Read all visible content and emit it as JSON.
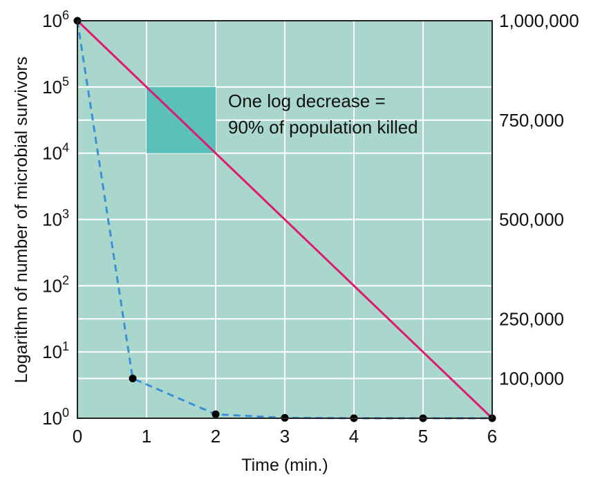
{
  "chart_data": {
    "type": "line",
    "title": "",
    "xlabel": "Time (min.)",
    "ylabel": "Logarithm of number of microbial survivors",
    "xlim": [
      0,
      6
    ],
    "ylim": [
      0,
      6
    ],
    "y_scale": "log",
    "x_ticks": [
      "0",
      "1",
      "2",
      "3",
      "4",
      "5",
      "6"
    ],
    "y_ticks": [
      {
        "base": "10",
        "exp": "0",
        "value": 0
      },
      {
        "base": "10",
        "exp": "1",
        "value": 1
      },
      {
        "base": "10",
        "exp": "2",
        "value": 2
      },
      {
        "base": "10",
        "exp": "3",
        "value": 3
      },
      {
        "base": "10",
        "exp": "4",
        "value": 4
      },
      {
        "base": "10",
        "exp": "5",
        "value": 5
      },
      {
        "base": "10",
        "exp": "6",
        "value": 6
      }
    ],
    "right_axis": {
      "scale": "linear",
      "ticks": [
        {
          "label": "1,000,000",
          "value": 1000000
        },
        {
          "label": "750,000",
          "value": 750000
        },
        {
          "label": "500,000",
          "value": 500000
        },
        {
          "label": "250,000",
          "value": 250000
        },
        {
          "label": "100,000",
          "value": 100000
        }
      ]
    },
    "series": [
      {
        "axis": "left-log",
        "style": "solid",
        "color": "#e0186f",
        "x": [
          0,
          6
        ],
        "y": [
          1000000,
          1
        ]
      },
      {
        "axis": "right-linear",
        "style": "dashed",
        "color": "#3b8fd9",
        "x": [
          0,
          0.8,
          2,
          3,
          4,
          5,
          6
        ],
        "y": [
          1000000,
          100000,
          10000,
          1000,
          100,
          10,
          1
        ]
      }
    ],
    "highlight": {
      "x": [
        1,
        2
      ],
      "y_log": [
        4,
        5
      ],
      "color": "#5bbfba"
    },
    "annotation": {
      "line1": "One log decrease =",
      "line2": "90% of population killed"
    },
    "grid": true,
    "plot_background": "#a9d7cc"
  }
}
